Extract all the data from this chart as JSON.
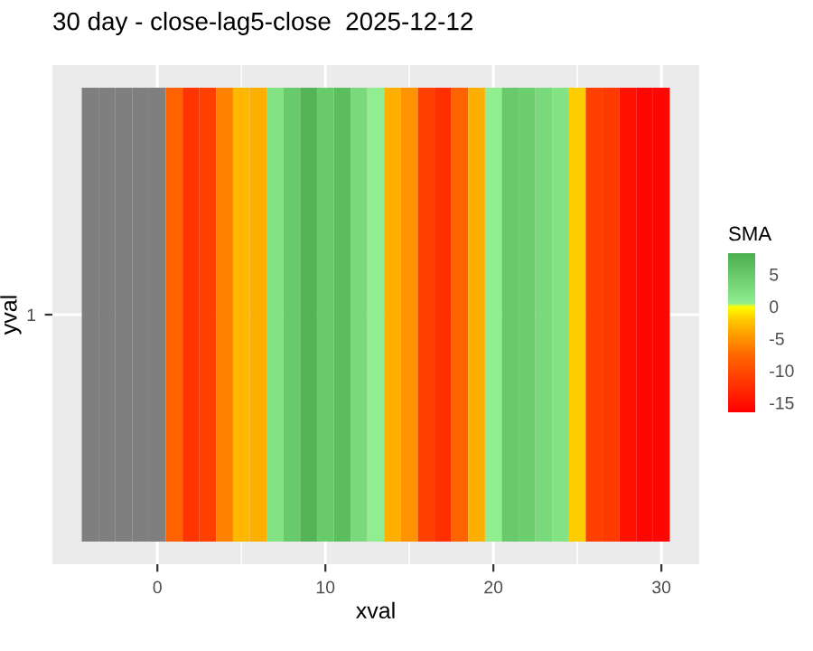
{
  "chart_data": {
    "type": "heatmap",
    "title": "30 day - close-lag5-close  2025-12-12",
    "xlabel": "xval",
    "ylabel": "yval",
    "clabel": "SMA",
    "x": [
      -4,
      -3,
      -2,
      -1,
      0,
      1,
      2,
      3,
      4,
      5,
      6,
      7,
      8,
      9,
      10,
      11,
      12,
      13,
      14,
      15,
      16,
      17,
      18,
      19,
      20,
      21,
      22,
      23,
      24,
      25,
      26,
      27,
      28,
      29,
      30
    ],
    "y_categories": [
      "1"
    ],
    "cells": [
      [
        null,
        null,
        null,
        null,
        null,
        -8,
        -12,
        -11,
        -6,
        -3,
        -3.5,
        2,
        5,
        7.5,
        5,
        6.5,
        3,
        0.5,
        -3.5,
        -5,
        -11,
        -12.5,
        -8,
        -3.5,
        0.5,
        5,
        4.5,
        3,
        2,
        -2,
        -11,
        -11.5,
        -15,
        -16,
        -16
      ]
    ],
    "xlim": [
      -6.25,
      32.25
    ],
    "xticks": [
      0,
      10,
      20,
      30
    ],
    "clim": [
      -16.5,
      8.3
    ],
    "cticks": [
      5,
      0,
      -5,
      -10,
      -15
    ],
    "grid": true
  }
}
